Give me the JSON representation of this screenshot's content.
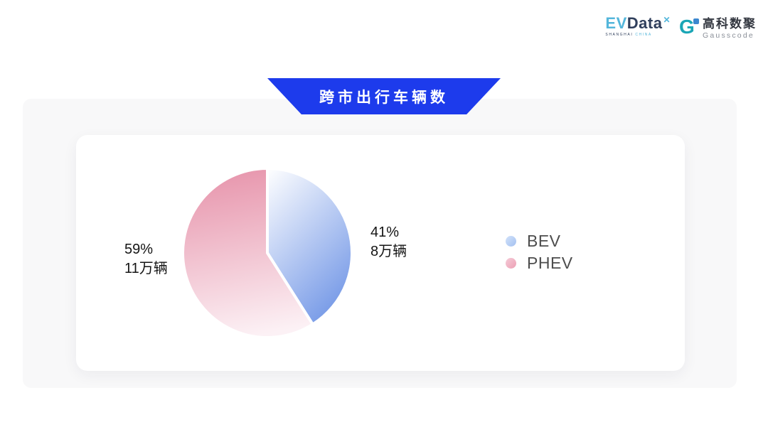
{
  "header": {
    "evdata_logo": {
      "ev": "EV",
      "data": "Data",
      "sup": "✕",
      "subtext_left": "SHANGHAI",
      "subtext_right": "CHINA",
      "ev_color": "#53b6db",
      "data_color": "#303f5c"
    },
    "gausscode_logo": {
      "glyph": "G",
      "icon_color": "#1ba6b6",
      "square_color": "#3b87cf",
      "name_cn": "高科数聚",
      "name_en": "Gausscode"
    }
  },
  "banner": {
    "title": "跨市出行车辆数",
    "background": "#1d3bec",
    "text_color": "#ffffff"
  },
  "chart_data": {
    "type": "pie",
    "title": "跨市出行车辆数",
    "unit": "万辆",
    "start_angle_deg": 0,
    "direction": "clockwise",
    "legend_position": "right",
    "slices": [
      {
        "label": "BEV",
        "percent": 41,
        "value": 8,
        "text_percent": "41%",
        "text_value": "8万辆",
        "label_side": "right",
        "color_start": "#ffffff",
        "color_end": "#7c9ee8",
        "swatch_from": "#d2e2fa",
        "swatch_to": "#a3c0f0"
      },
      {
        "label": "PHEV",
        "percent": 59,
        "value": 11,
        "text_percent": "59%",
        "text_value": "11万辆",
        "label_side": "left",
        "color_start": "#e795ac",
        "color_end": "#fcf1f5",
        "swatch_from": "#f5cbd7",
        "swatch_to": "#ec9fb4"
      }
    ]
  }
}
